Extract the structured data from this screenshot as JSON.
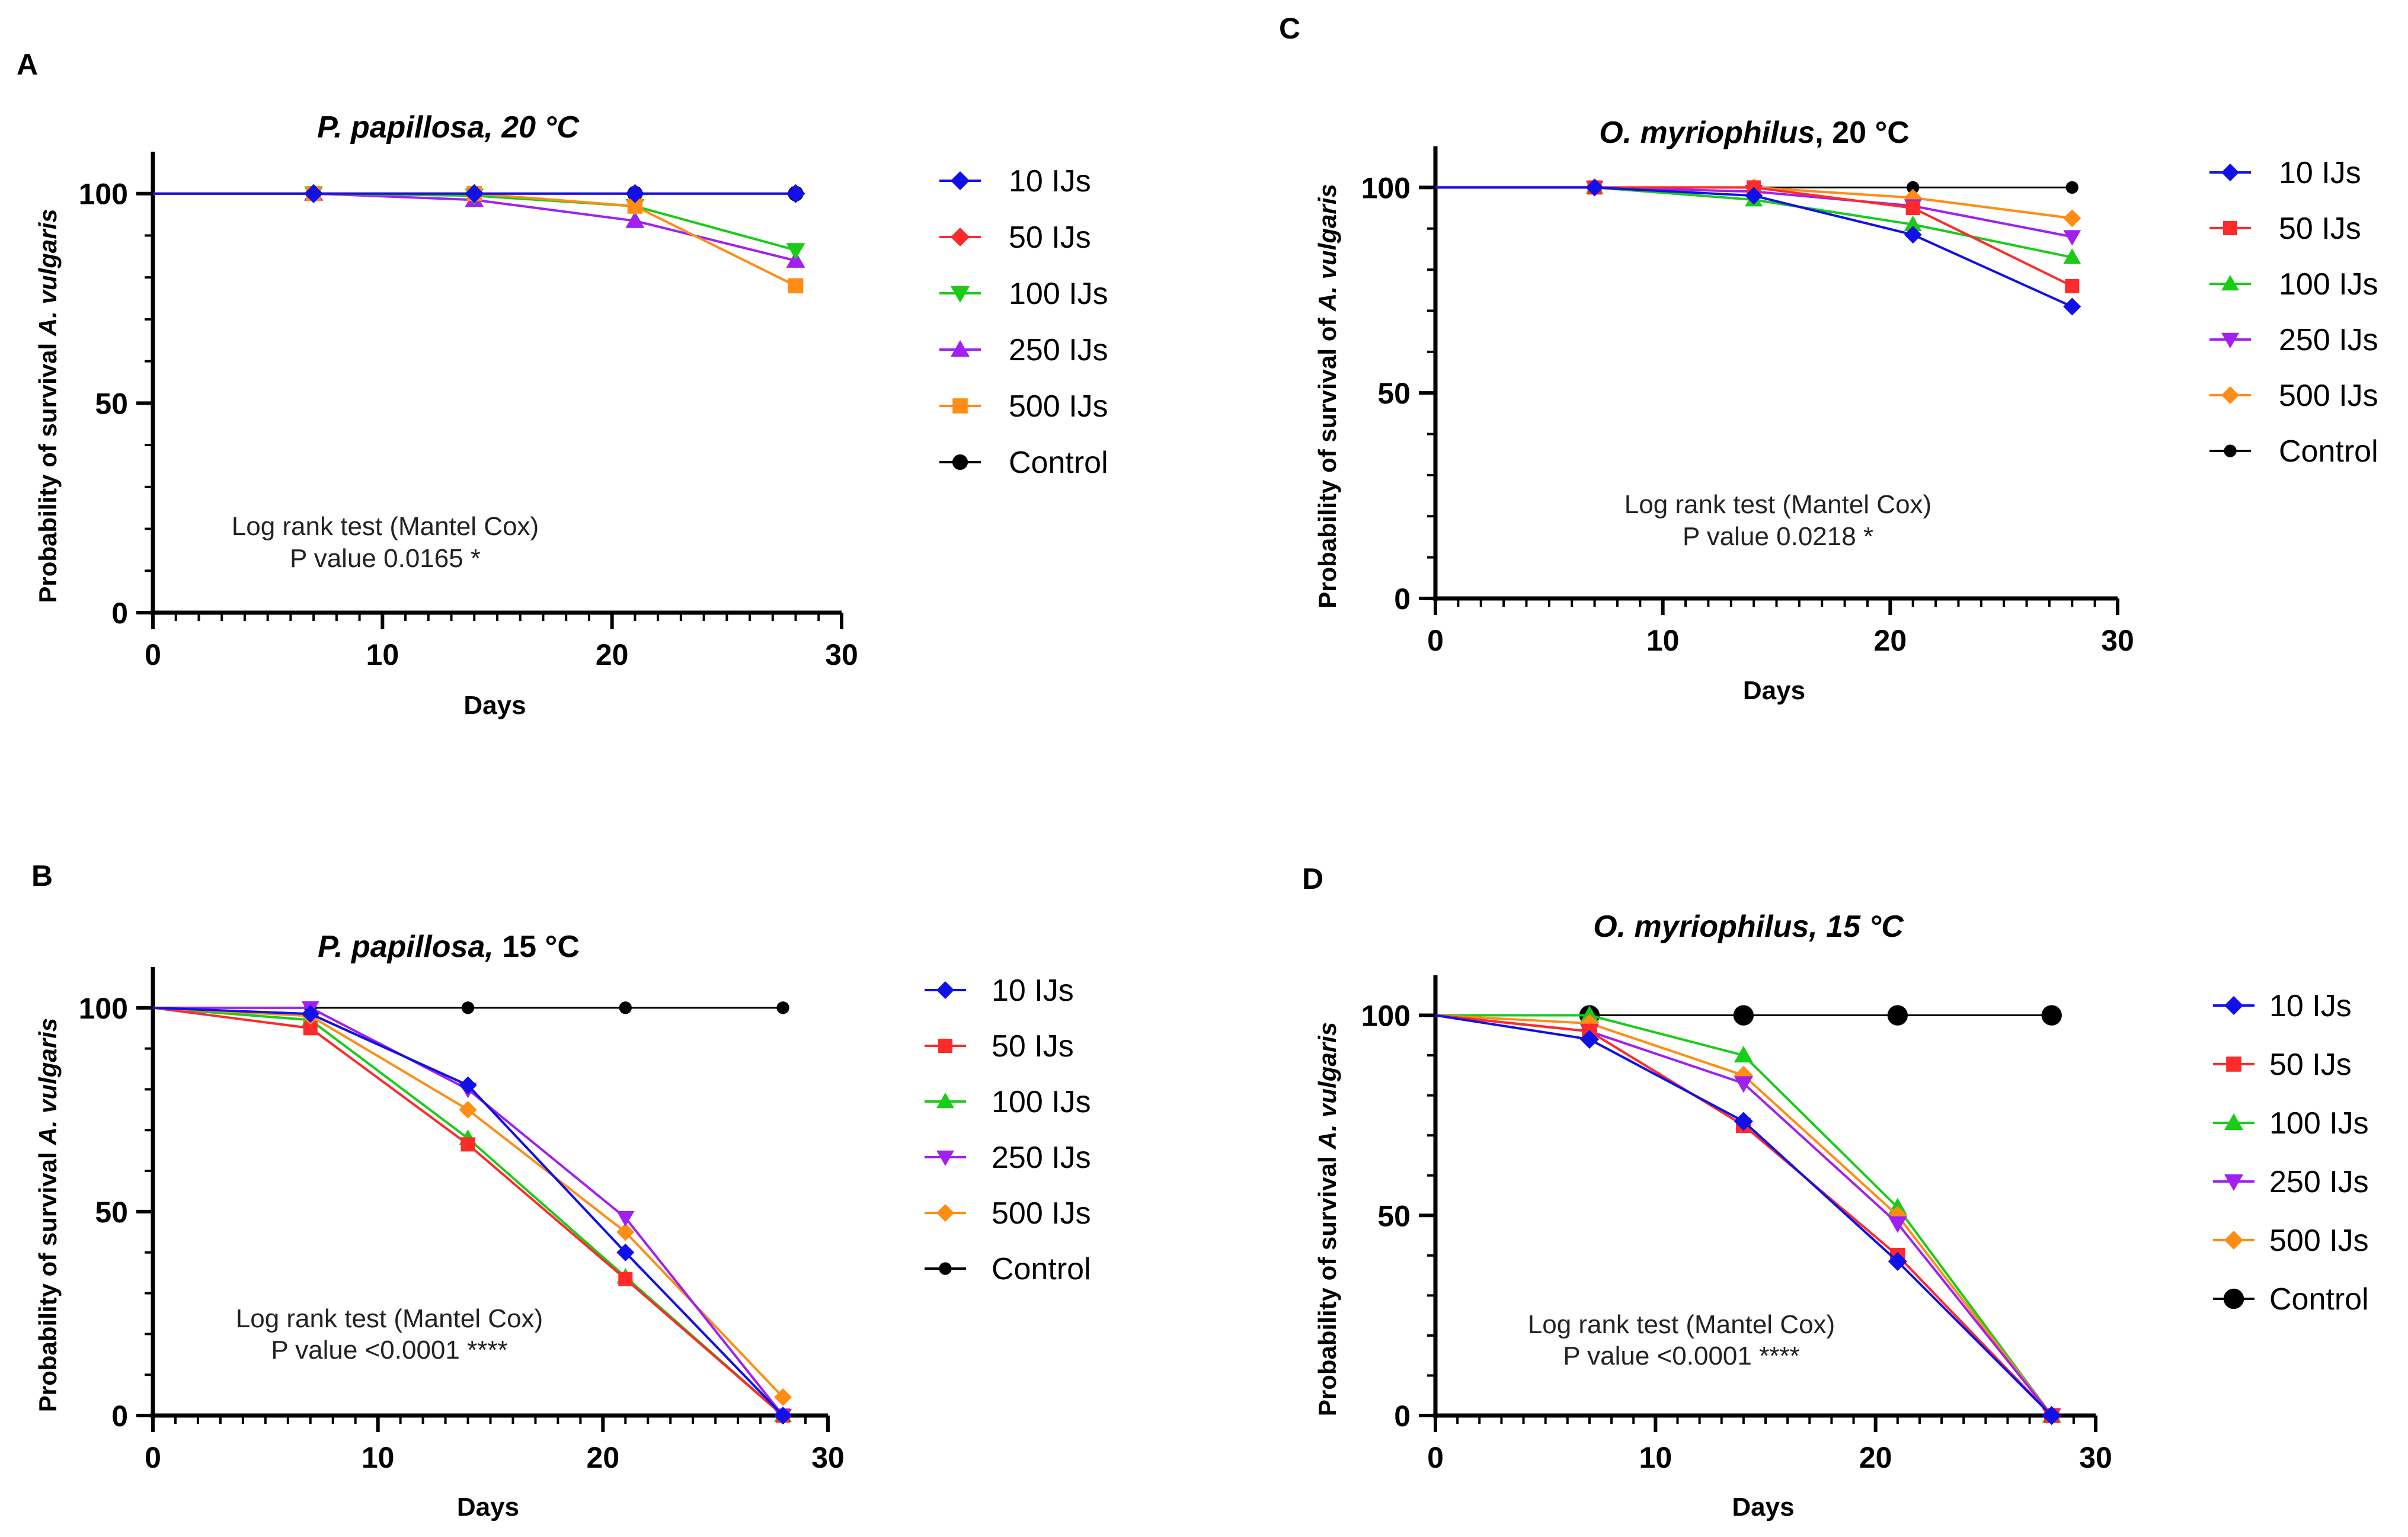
{
  "colors": {
    "10 IJs": "#1010e8",
    "50 IJs": "#ff2a2a",
    "100 IJs": "#18cc18",
    "250 IJs": "#a020f0",
    "500 IJs": "#ff8c14",
    "Control": "#000000"
  },
  "chart_data": [
    {
      "type": "line",
      "panel_label": "A",
      "title_italic": "P. papillosa, 20 °C",
      "title_plain": "",
      "xlabel": "Days",
      "ylabel_prefix": "Probability of survival ",
      "ylabel_italic": "A. vulgaris",
      "xlim": [
        0,
        30
      ],
      "ylim": [
        0,
        110
      ],
      "xticks": [
        0,
        10,
        20,
        30
      ],
      "yticks": [
        0,
        50,
        100
      ],
      "legend_order": [
        "10 IJs",
        "50 IJs",
        "100 IJs",
        "250 IJs",
        "500 IJs",
        "Control"
      ],
      "legend_markers": [
        "diamond",
        "diamond",
        "triangle-down",
        "triangle-up",
        "square",
        "circle"
      ],
      "annotation": [
        "Log rank test (Mantel Cox)",
        "P value 0.0165 *"
      ],
      "x": [
        0,
        7,
        14,
        21,
        28
      ],
      "series": [
        {
          "name": "Control",
          "values": [
            100,
            100,
            100,
            100,
            100
          ],
          "marker": "circle"
        },
        {
          "name": "250 IJs",
          "values": [
            100,
            100,
            98.5,
            93.5,
            84
          ],
          "marker": "triangle-up"
        },
        {
          "name": "100 IJs",
          "values": [
            100,
            100,
            99.5,
            97,
            86.5
          ],
          "marker": "triangle-down"
        },
        {
          "name": "500 IJs",
          "values": [
            100,
            100,
            100,
            97,
            78
          ],
          "marker": "square"
        },
        {
          "name": "50 IJs",
          "values": [
            100,
            100,
            100,
            100,
            100
          ],
          "marker": "diamond"
        },
        {
          "name": "10 IJs",
          "values": [
            100,
            100,
            100,
            100,
            100
          ],
          "marker": "diamond"
        }
      ]
    },
    {
      "type": "line",
      "panel_label": "B",
      "title_italic": "P. papillosa,",
      "title_plain": " 15 °C",
      "xlabel": "Days",
      "ylabel_prefix": "Probability of survival ",
      "ylabel_italic": "A. vulgaris",
      "xlim": [
        0,
        30
      ],
      "ylim": [
        0,
        110
      ],
      "xticks": [
        0,
        10,
        20,
        30
      ],
      "yticks": [
        0,
        50,
        100
      ],
      "legend_order": [
        "10 IJs",
        "50 IJs",
        "100 IJs",
        "250 IJs",
        "500 IJs",
        "Control"
      ],
      "legend_markers": [
        "diamond",
        "square",
        "triangle-up",
        "triangle-down",
        "diamond",
        "circle"
      ],
      "annotation": [
        "Log rank test (Mantel Cox)",
        "P value <0.0001 ****"
      ],
      "x": [
        0,
        7,
        14,
        21,
        28
      ],
      "series": [
        {
          "name": "Control",
          "values": [
            100,
            100,
            100,
            100,
            100
          ],
          "marker": "circle"
        },
        {
          "name": "100 IJs",
          "values": [
            100,
            97,
            68,
            34,
            0
          ],
          "marker": "triangle-up"
        },
        {
          "name": "50 IJs",
          "values": [
            100,
            95,
            66.5,
            33.5,
            0
          ],
          "marker": "square"
        },
        {
          "name": "500 IJs",
          "values": [
            100,
            98,
            75,
            45,
            4.5
          ],
          "marker": "diamond"
        },
        {
          "name": "250 IJs",
          "values": [
            100,
            100,
            80,
            48.5,
            0
          ],
          "marker": "triangle-down"
        },
        {
          "name": "10 IJs",
          "values": [
            100,
            98.5,
            81,
            40,
            0
          ],
          "marker": "diamond"
        }
      ]
    },
    {
      "type": "line",
      "panel_label": "C",
      "title_italic": "O. myriophilus",
      "title_plain": ", 20 °C",
      "xlabel": "Days",
      "ylabel_prefix": "Probability of survival of ",
      "ylabel_italic": "A. vulgaris",
      "xlim": [
        0,
        30
      ],
      "ylim": [
        0,
        110
      ],
      "xticks": [
        0,
        10,
        20,
        30
      ],
      "yticks": [
        0,
        50,
        100
      ],
      "legend_order": [
        "10 IJs",
        "50 IJs",
        "100 IJs",
        "250 IJs",
        "500 IJs",
        "Control"
      ],
      "legend_markers": [
        "diamond",
        "square",
        "triangle-up",
        "triangle-down",
        "diamond",
        "circle"
      ],
      "annotation": [
        "Log rank test (Mantel Cox)",
        "P value 0.0218 *"
      ],
      "x": [
        0,
        7,
        14,
        21,
        28
      ],
      "series": [
        {
          "name": "Control",
          "values": [
            100,
            100,
            100,
            100,
            100
          ],
          "marker": "circle"
        },
        {
          "name": "500 IJs",
          "values": [
            100,
            100,
            100,
            97.5,
            92.5
          ],
          "marker": "diamond"
        },
        {
          "name": "250 IJs",
          "values": [
            100,
            100,
            99,
            95.5,
            88
          ],
          "marker": "triangle-down"
        },
        {
          "name": "100 IJs",
          "values": [
            100,
            100,
            97,
            91,
            83
          ],
          "marker": "triangle-up"
        },
        {
          "name": "50 IJs",
          "values": [
            100,
            100,
            100,
            95,
            76
          ],
          "marker": "square"
        },
        {
          "name": "10 IJs",
          "values": [
            100,
            100,
            98,
            88.5,
            71
          ],
          "marker": "diamond"
        }
      ]
    },
    {
      "type": "line",
      "panel_label": "D",
      "title_italic": "O. myriophilus, 15 °C",
      "title_plain": "",
      "xlabel": "Days",
      "ylabel_prefix": "Probability of survival ",
      "ylabel_italic": "A. vulgaris",
      "xlim": [
        0,
        30
      ],
      "ylim": [
        0,
        110
      ],
      "xticks": [
        0,
        10,
        20,
        30
      ],
      "yticks": [
        0,
        50,
        100
      ],
      "legend_order": [
        "10 IJs",
        "50 IJs",
        "100 IJs",
        "250 IJs",
        "500 IJs",
        "Control"
      ],
      "legend_markers": [
        "diamond",
        "square",
        "triangle-up",
        "triangle-down",
        "diamond",
        "circle"
      ],
      "annotation": [
        "Log rank test (Mantel Cox)",
        "P value <0.0001 ****"
      ],
      "x": [
        0,
        7,
        14,
        21,
        28
      ],
      "series": [
        {
          "name": "Control",
          "values": [
            100,
            100,
            100,
            100,
            100
          ],
          "marker": "circle"
        },
        {
          "name": "100 IJs",
          "values": [
            100,
            100,
            90,
            52,
            0
          ],
          "marker": "triangle-up"
        },
        {
          "name": "500 IJs",
          "values": [
            100,
            98,
            85,
            50,
            0
          ],
          "marker": "diamond"
        },
        {
          "name": "250 IJs",
          "values": [
            100,
            96,
            83,
            48,
            0
          ],
          "marker": "triangle-down"
        },
        {
          "name": "50 IJs",
          "values": [
            100,
            96,
            72.5,
            40,
            0
          ],
          "marker": "square"
        },
        {
          "name": "10 IJs",
          "values": [
            100,
            94,
            73.5,
            38.5,
            0
          ],
          "marker": "diamond"
        }
      ]
    }
  ]
}
